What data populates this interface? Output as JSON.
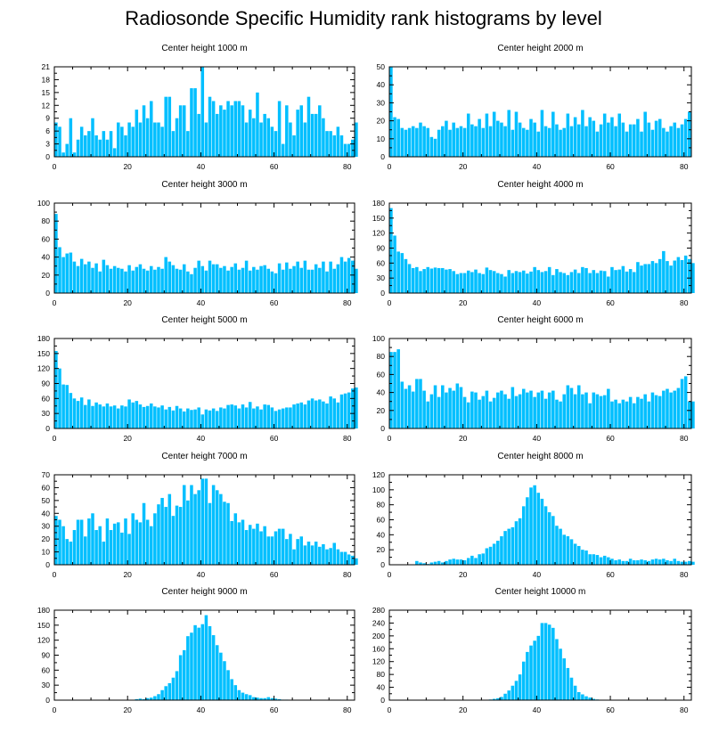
{
  "title": "Radiosonde Specific Humidity rank histograms by level",
  "bar_color": "#00bfff",
  "chart_data": [
    {
      "type": "bar",
      "title": "Center height 1000 m",
      "xlim": [
        0,
        82
      ],
      "ylim": [
        0,
        21
      ],
      "xticks": [
        0,
        20,
        40,
        60,
        80
      ],
      "yticks": [
        0,
        3,
        6,
        9,
        12,
        15,
        18,
        21
      ],
      "values": [
        8,
        7,
        1,
        3,
        9,
        1,
        4,
        7,
        5,
        6,
        9,
        5,
        4,
        6,
        4,
        6,
        2,
        8,
        7,
        5,
        8,
        7,
        11,
        8,
        12,
        9,
        13,
        8,
        8,
        7,
        14,
        14,
        6,
        9,
        12,
        12,
        6,
        16,
        16,
        10,
        21,
        8,
        14,
        13,
        10,
        12,
        11,
        13,
        12,
        13,
        13,
        12,
        8,
        11,
        9,
        15,
        8,
        10,
        9,
        7,
        6,
        13,
        3,
        12,
        8,
        5,
        11,
        12,
        8,
        14,
        10,
        10,
        12,
        9,
        6,
        6,
        5,
        7,
        5,
        3,
        3,
        4,
        8
      ]
    },
    {
      "type": "bar",
      "title": "Center height 2000 m",
      "xlim": [
        0,
        82
      ],
      "ylim": [
        0,
        50
      ],
      "xticks": [
        0,
        20,
        40,
        60,
        80
      ],
      "yticks": [
        0,
        10,
        20,
        30,
        40,
        50
      ],
      "values": [
        50,
        22,
        21,
        16,
        15,
        16,
        17,
        16,
        19,
        17,
        16,
        11,
        10,
        15,
        17,
        20,
        15,
        19,
        16,
        17,
        16,
        24,
        18,
        17,
        21,
        16,
        24,
        17,
        25,
        20,
        19,
        17,
        26,
        15,
        25,
        19,
        16,
        15,
        21,
        19,
        14,
        26,
        17,
        16,
        25,
        18,
        15,
        16,
        24,
        17,
        22,
        18,
        26,
        17,
        22,
        20,
        14,
        18,
        24,
        19,
        22,
        17,
        24,
        19,
        14,
        18,
        18,
        21,
        14,
        25,
        19,
        15,
        20,
        21,
        16,
        14,
        17,
        19,
        16,
        18,
        21,
        25
      ]
    },
    {
      "type": "bar",
      "title": "Center height 3000 m",
      "xlim": [
        0,
        82
      ],
      "ylim": [
        0,
        100
      ],
      "xticks": [
        0,
        20,
        40,
        60,
        80
      ],
      "yticks": [
        0,
        20,
        40,
        60,
        80,
        100
      ],
      "values": [
        88,
        51,
        40,
        44,
        45,
        35,
        30,
        38,
        32,
        35,
        28,
        33,
        24,
        37,
        31,
        27,
        30,
        28,
        27,
        24,
        31,
        25,
        29,
        32,
        27,
        25,
        30,
        26,
        29,
        27,
        40,
        35,
        31,
        27,
        26,
        32,
        24,
        21,
        28,
        36,
        30,
        25,
        36,
        32,
        32,
        28,
        30,
        25,
        29,
        33,
        26,
        28,
        36,
        25,
        29,
        26,
        30,
        31,
        27,
        24,
        22,
        33,
        26,
        34,
        27,
        30,
        35,
        28,
        36,
        26,
        26,
        32,
        28,
        35,
        24,
        35,
        27,
        32,
        40,
        35,
        39,
        36,
        27
      ]
    },
    {
      "type": "bar",
      "title": "Center height 4000 m",
      "xlim": [
        0,
        82
      ],
      "ylim": [
        0,
        180
      ],
      "xticks": [
        0,
        20,
        40,
        60,
        80
      ],
      "yticks": [
        0,
        30,
        60,
        90,
        120,
        150,
        180
      ],
      "values": [
        170,
        115,
        83,
        80,
        68,
        58,
        50,
        52,
        44,
        48,
        52,
        49,
        51,
        50,
        50,
        47,
        48,
        44,
        38,
        40,
        40,
        45,
        42,
        47,
        40,
        38,
        51,
        46,
        44,
        40,
        38,
        33,
        46,
        40,
        44,
        42,
        45,
        39,
        43,
        52,
        46,
        42,
        44,
        52,
        36,
        48,
        42,
        40,
        36,
        42,
        47,
        40,
        52,
        50,
        40,
        46,
        40,
        45,
        44,
        33,
        52,
        46,
        47,
        54,
        43,
        48,
        42,
        62,
        55,
        58,
        58,
        64,
        60,
        68,
        84,
        64,
        55,
        65,
        72,
        66,
        75,
        68,
        60
      ]
    },
    {
      "type": "bar",
      "title": "Center height 5000 m",
      "xlim": [
        0,
        82
      ],
      "ylim": [
        0,
        180
      ],
      "xticks": [
        0,
        20,
        40,
        60,
        80
      ],
      "yticks": [
        0,
        30,
        60,
        90,
        120,
        150,
        180
      ],
      "values": [
        155,
        120,
        88,
        87,
        71,
        60,
        55,
        62,
        47,
        58,
        45,
        52,
        48,
        44,
        50,
        44,
        46,
        40,
        46,
        44,
        58,
        52,
        55,
        48,
        43,
        45,
        50,
        44,
        42,
        46,
        38,
        43,
        36,
        45,
        40,
        34,
        40,
        37,
        38,
        42,
        28,
        38,
        36,
        40,
        35,
        42,
        40,
        47,
        48,
        46,
        40,
        48,
        42,
        53,
        40,
        44,
        38,
        48,
        47,
        42,
        35,
        38,
        40,
        42,
        42,
        48,
        50,
        52,
        48,
        56,
        60,
        56,
        58,
        54,
        50,
        64,
        60,
        52,
        68,
        70,
        72,
        80,
        82
      ]
    },
    {
      "type": "bar",
      "title": "Center height 6000 m",
      "xlim": [
        0,
        82
      ],
      "ylim": [
        0,
        100
      ],
      "xticks": [
        0,
        20,
        40,
        60,
        80
      ],
      "yticks": [
        0,
        20,
        40,
        60,
        80,
        100
      ],
      "values": [
        85,
        85,
        88,
        52,
        44,
        48,
        41,
        55,
        55,
        42,
        30,
        38,
        48,
        35,
        48,
        40,
        45,
        42,
        50,
        46,
        35,
        29,
        41,
        40,
        32,
        36,
        42,
        30,
        34,
        40,
        42,
        38,
        33,
        46,
        36,
        38,
        44,
        40,
        42,
        35,
        40,
        42,
        33,
        40,
        42,
        32,
        30,
        38,
        48,
        45,
        38,
        48,
        38,
        40,
        28,
        40,
        38,
        36,
        37,
        44,
        30,
        32,
        28,
        32,
        30,
        35,
        28,
        35,
        33,
        38,
        30,
        40,
        37,
        36,
        42,
        44,
        40,
        42,
        45,
        55,
        58,
        30,
        30
      ]
    },
    {
      "type": "bar",
      "title": "Center height 7000 m",
      "xlim": [
        0,
        82
      ],
      "ylim": [
        0,
        70
      ],
      "xticks": [
        0,
        20,
        40,
        60,
        80
      ],
      "yticks": [
        0,
        10,
        20,
        30,
        40,
        50,
        60,
        70
      ],
      "values": [
        38,
        35,
        30,
        20,
        18,
        27,
        35,
        35,
        22,
        36,
        40,
        27,
        30,
        18,
        36,
        27,
        32,
        33,
        25,
        36,
        24,
        40,
        35,
        33,
        48,
        35,
        30,
        40,
        47,
        52,
        45,
        55,
        38,
        46,
        45,
        62,
        50,
        62,
        55,
        58,
        67,
        67,
        48,
        62,
        58,
        55,
        49,
        48,
        34,
        40,
        33,
        35,
        27,
        31,
        28,
        32,
        26,
        30,
        22,
        22,
        26,
        28,
        28,
        20,
        24,
        12,
        20,
        22,
        15,
        18,
        15,
        18,
        14,
        16,
        12,
        13,
        17,
        12,
        10,
        10,
        8,
        7,
        5
      ]
    },
    {
      "type": "bar",
      "title": "Center height 8000 m",
      "xlim": [
        0,
        82
      ],
      "ylim": [
        0,
        120
      ],
      "xticks": [
        0,
        20,
        40,
        60,
        80
      ],
      "yticks": [
        0,
        20,
        40,
        60,
        80,
        100,
        120
      ],
      "values": [
        0,
        0,
        0,
        0,
        0,
        0,
        0,
        5,
        3,
        2,
        1,
        3,
        4,
        5,
        3,
        5,
        7,
        8,
        7,
        7,
        6,
        9,
        12,
        9,
        14,
        15,
        22,
        24,
        28,
        32,
        38,
        45,
        48,
        50,
        58,
        62,
        78,
        90,
        103,
        106,
        96,
        88,
        78,
        70,
        65,
        52,
        48,
        40,
        38,
        34,
        28,
        25,
        20,
        19,
        14,
        14,
        13,
        10,
        12,
        10,
        8,
        6,
        7,
        5,
        5,
        8,
        6,
        6,
        7,
        6,
        5,
        7,
        8,
        7,
        8,
        6,
        5,
        8,
        5,
        4,
        4,
        5,
        4
      ]
    },
    {
      "type": "bar",
      "title": "Center height 9000 m",
      "xlim": [
        0,
        82
      ],
      "ylim": [
        0,
        180
      ],
      "xticks": [
        0,
        20,
        40,
        60,
        80
      ],
      "yticks": [
        0,
        30,
        60,
        90,
        120,
        150,
        180
      ],
      "values": [
        0,
        0,
        0,
        0,
        0,
        0,
        0,
        0,
        0,
        0,
        0,
        0,
        0,
        0,
        0,
        0,
        0,
        0,
        0,
        0,
        0,
        0,
        2,
        3,
        2,
        4,
        5,
        8,
        12,
        20,
        28,
        34,
        45,
        58,
        90,
        100,
        128,
        135,
        150,
        145,
        152,
        170,
        148,
        130,
        110,
        95,
        78,
        60,
        42,
        30,
        20,
        15,
        12,
        10,
        6,
        5,
        4,
        4,
        6,
        4,
        3,
        2,
        1,
        1,
        0,
        0,
        0,
        0,
        0,
        0,
        0,
        0,
        0,
        0,
        0,
        0,
        0,
        0,
        0,
        0,
        0,
        0,
        0
      ]
    },
    {
      "type": "bar",
      "title": "Center height 10000 m",
      "xlim": [
        0,
        82
      ],
      "ylim": [
        0,
        280
      ],
      "xticks": [
        0,
        20,
        40,
        60,
        80
      ],
      "yticks": [
        0,
        40,
        80,
        120,
        160,
        200,
        240,
        280
      ],
      "values": [
        0,
        0,
        0,
        0,
        0,
        0,
        0,
        0,
        0,
        0,
        0,
        0,
        0,
        0,
        0,
        0,
        0,
        0,
        0,
        0,
        0,
        0,
        0,
        0,
        0,
        0,
        0,
        2,
        4,
        6,
        10,
        20,
        30,
        45,
        60,
        80,
        120,
        150,
        170,
        185,
        200,
        240,
        240,
        235,
        225,
        190,
        160,
        130,
        100,
        70,
        45,
        25,
        18,
        12,
        8,
        4,
        2,
        0,
        0,
        0,
        0,
        0,
        0,
        0,
        0,
        0,
        0,
        0,
        0,
        0,
        0,
        0,
        0,
        0,
        0,
        0,
        0,
        0,
        0,
        0,
        0,
        0,
        0
      ]
    }
  ]
}
